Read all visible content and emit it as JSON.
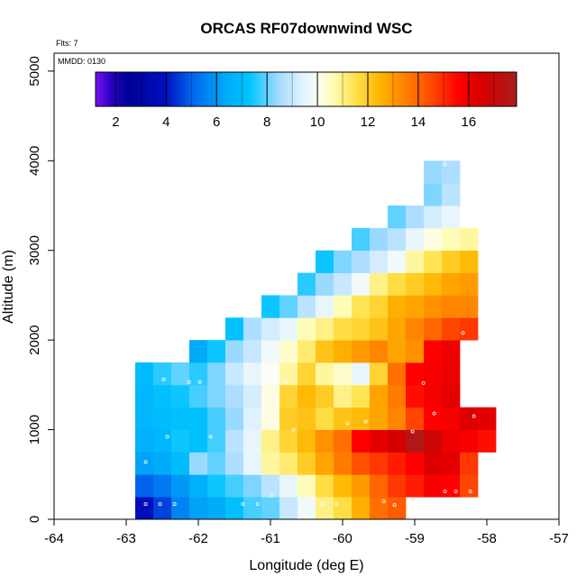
{
  "chart_data": {
    "type": "heatmap",
    "title": "ORCAS RF07downwind WSC",
    "xlabel": "Longitude (deg E)",
    "ylabel": "Altitude (m)",
    "note_flts": "Flts: 7",
    "note_mmdd": "MMDD: 0130",
    "xlim": [
      -64,
      -57
    ],
    "ylim": [
      0,
      5200
    ],
    "x_ticks": [
      -64,
      -63,
      -62,
      -61,
      -60,
      -59,
      -58,
      -57
    ],
    "y_ticks": [
      0,
      1000,
      2000,
      3000,
      4000,
      5000
    ],
    "colorbar": {
      "range": [
        1.2,
        17.9
      ],
      "ticks": [
        2,
        4,
        6,
        8,
        10,
        12,
        14,
        16
      ],
      "stops": [
        [
          1.2,
          "#7a10f0"
        ],
        [
          1.8,
          "#2a00c8"
        ],
        [
          2.5,
          "#000096"
        ],
        [
          4.0,
          "#0010c0"
        ],
        [
          5.0,
          "#0064ee"
        ],
        [
          6.3,
          "#00a8f8"
        ],
        [
          7.3,
          "#00c4ff"
        ],
        [
          8.5,
          "#a8dcff"
        ],
        [
          9.4,
          "#dff2ff"
        ],
        [
          10.0,
          "#fbfdf6"
        ],
        [
          10.6,
          "#fffcb8"
        ],
        [
          11.5,
          "#ffe24a"
        ],
        [
          12.5,
          "#ffb400"
        ],
        [
          13.5,
          "#ff8000"
        ],
        [
          14.5,
          "#ff4c00"
        ],
        [
          15.6,
          "#ff0000"
        ],
        [
          16.6,
          "#d40000"
        ],
        [
          17.9,
          "#a81e1e"
        ]
      ]
    },
    "cell_size": {
      "dlon": 0.25,
      "dalt": 250
    },
    "cells": [
      [
        -62.75,
        125,
        3.8
      ],
      [
        -62.5,
        125,
        4.6
      ],
      [
        -62.25,
        125,
        5.6
      ],
      [
        -62.0,
        125,
        6.2
      ],
      [
        -61.75,
        125,
        6.4
      ],
      [
        -61.5,
        125,
        7.2
      ],
      [
        -61.25,
        125,
        7.8
      ],
      [
        -61.0,
        125,
        8.0
      ],
      [
        -60.75,
        125,
        9.0
      ],
      [
        -60.5,
        125,
        9.8
      ],
      [
        -60.25,
        125,
        11.0
      ],
      [
        -60.0,
        125,
        11.6
      ],
      [
        -59.75,
        125,
        12.6
      ],
      [
        -59.5,
        125,
        13.8
      ],
      [
        -59.25,
        125,
        14.2
      ],
      [
        -62.75,
        375,
        5.0
      ],
      [
        -62.5,
        375,
        5.4
      ],
      [
        -62.25,
        375,
        6.0
      ],
      [
        -62.0,
        375,
        6.6
      ],
      [
        -61.75,
        375,
        7.4
      ],
      [
        -61.5,
        375,
        7.8
      ],
      [
        -61.25,
        375,
        8.2
      ],
      [
        -61.0,
        375,
        8.8
      ],
      [
        -60.75,
        375,
        9.6
      ],
      [
        -60.5,
        375,
        10.6
      ],
      [
        -60.25,
        375,
        11.6
      ],
      [
        -60.0,
        375,
        12.4
      ],
      [
        -59.75,
        375,
        13.0
      ],
      [
        -59.5,
        375,
        14.0
      ],
      [
        -59.25,
        375,
        14.8
      ],
      [
        -59.0,
        375,
        15.2
      ],
      [
        -58.75,
        375,
        15.8
      ],
      [
        -58.5,
        375,
        15.6
      ],
      [
        -58.25,
        375,
        14.6
      ],
      [
        -62.75,
        625,
        6.2
      ],
      [
        -62.5,
        625,
        6.4
      ],
      [
        -62.25,
        625,
        7.0
      ],
      [
        -62.0,
        625,
        8.4
      ],
      [
        -61.75,
        625,
        8.0
      ],
      [
        -61.5,
        625,
        8.6
      ],
      [
        -61.25,
        625,
        9.6
      ],
      [
        -61.0,
        625,
        10.8
      ],
      [
        -60.75,
        625,
        11.2
      ],
      [
        -60.5,
        625,
        12.0
      ],
      [
        -60.25,
        625,
        12.8
      ],
      [
        -60.0,
        625,
        13.6
      ],
      [
        -59.75,
        625,
        14.4
      ],
      [
        -59.5,
        625,
        14.8
      ],
      [
        -59.25,
        625,
        15.2
      ],
      [
        -59.0,
        625,
        15.6
      ],
      [
        -58.75,
        625,
        16.4
      ],
      [
        -58.5,
        625,
        16.2
      ],
      [
        -58.25,
        625,
        14.8
      ],
      [
        -62.75,
        875,
        6.6
      ],
      [
        -62.5,
        875,
        6.8
      ],
      [
        -62.25,
        875,
        7.4
      ],
      [
        -62.0,
        875,
        7.2
      ],
      [
        -61.75,
        875,
        7.8
      ],
      [
        -61.5,
        875,
        8.8
      ],
      [
        -61.25,
        875,
        9.6
      ],
      [
        -61.0,
        875,
        11.0
      ],
      [
        -60.75,
        875,
        11.8
      ],
      [
        -60.5,
        875,
        12.4
      ],
      [
        -60.25,
        875,
        13.2
      ],
      [
        -60.0,
        875,
        13.8
      ],
      [
        -59.75,
        875,
        15.6
      ],
      [
        -59.5,
        875,
        16.2
      ],
      [
        -59.25,
        875,
        16.6
      ],
      [
        -59.0,
        875,
        17.6
      ],
      [
        -58.75,
        875,
        16.8
      ],
      [
        -58.5,
        875,
        16.0
      ],
      [
        -58.25,
        875,
        15.8
      ],
      [
        -58.0,
        875,
        15.4
      ],
      [
        -62.75,
        1125,
        6.8
      ],
      [
        -62.5,
        1125,
        7.0
      ],
      [
        -62.25,
        1125,
        7.2
      ],
      [
        -62.0,
        1125,
        7.2
      ],
      [
        -61.75,
        1125,
        7.8
      ],
      [
        -61.5,
        1125,
        8.4
      ],
      [
        -61.25,
        1125,
        9.4
      ],
      [
        -61.0,
        1125,
        10.2
      ],
      [
        -60.75,
        1125,
        12.0
      ],
      [
        -60.5,
        1125,
        12.2
      ],
      [
        -60.25,
        1125,
        11.6
      ],
      [
        -60.0,
        1125,
        12.2
      ],
      [
        -59.75,
        1125,
        12.4
      ],
      [
        -59.5,
        1125,
        12.8
      ],
      [
        -59.25,
        1125,
        13.4
      ],
      [
        -59.0,
        1125,
        14.6
      ],
      [
        -58.75,
        1125,
        15.6
      ],
      [
        -58.5,
        1125,
        15.8
      ],
      [
        -58.25,
        1125,
        16.4
      ],
      [
        -58.0,
        1125,
        16.2
      ],
      [
        -62.75,
        1375,
        6.8
      ],
      [
        -62.5,
        1375,
        7.2
      ],
      [
        -62.25,
        1375,
        7.4
      ],
      [
        -62.0,
        1375,
        7.8
      ],
      [
        -61.75,
        1375,
        8.2
      ],
      [
        -61.5,
        1375,
        8.6
      ],
      [
        -61.25,
        1375,
        9.2
      ],
      [
        -61.0,
        1375,
        10.2
      ],
      [
        -60.75,
        1375,
        11.8
      ],
      [
        -60.5,
        1375,
        12.4
      ],
      [
        -60.25,
        1375,
        12.0
      ],
      [
        -60.0,
        1375,
        11.0
      ],
      [
        -59.75,
        1375,
        11.4
      ],
      [
        -59.5,
        1375,
        12.8
      ],
      [
        -59.25,
        1375,
        13.6
      ],
      [
        -59.0,
        1375,
        15.4
      ],
      [
        -58.75,
        1375,
        15.8
      ],
      [
        -58.5,
        1375,
        16.2
      ],
      [
        -62.75,
        1625,
        7.0
      ],
      [
        -62.5,
        1625,
        7.6
      ],
      [
        -62.25,
        1625,
        8.0
      ],
      [
        -62.0,
        1625,
        7.6
      ],
      [
        -61.75,
        1625,
        8.2
      ],
      [
        -61.5,
        1625,
        9.0
      ],
      [
        -61.25,
        1625,
        9.6
      ],
      [
        -61.0,
        1625,
        10.0
      ],
      [
        -60.75,
        1625,
        10.8
      ],
      [
        -60.5,
        1625,
        11.8
      ],
      [
        -60.25,
        1625,
        10.8
      ],
      [
        -60.0,
        1625,
        10.4
      ],
      [
        -59.75,
        1625,
        9.6
      ],
      [
        -59.5,
        1625,
        11.8
      ],
      [
        -59.25,
        1625,
        13.8
      ],
      [
        -59.0,
        1625,
        15.6
      ],
      [
        -58.75,
        1625,
        15.8
      ],
      [
        -58.5,
        1625,
        16.0
      ],
      [
        -62.0,
        1875,
        6.4
      ],
      [
        -61.75,
        1875,
        7.4
      ],
      [
        -61.5,
        1875,
        8.4
      ],
      [
        -61.25,
        1875,
        9.0
      ],
      [
        -61.0,
        1875,
        9.8
      ],
      [
        -60.75,
        1875,
        10.4
      ],
      [
        -60.5,
        1875,
        11.2
      ],
      [
        -60.25,
        1875,
        12.2
      ],
      [
        -60.0,
        1875,
        12.6
      ],
      [
        -59.75,
        1875,
        13.0
      ],
      [
        -59.5,
        1875,
        13.4
      ],
      [
        -59.25,
        1875,
        12.8
      ],
      [
        -59.0,
        1875,
        13.2
      ],
      [
        -58.75,
        1875,
        15.6
      ],
      [
        -58.5,
        1875,
        16.0
      ],
      [
        -61.5,
        2125,
        7.2
      ],
      [
        -61.25,
        2125,
        8.6
      ],
      [
        -61.0,
        2125,
        9.2
      ],
      [
        -60.75,
        2125,
        9.6
      ],
      [
        -60.5,
        2125,
        10.6
      ],
      [
        -60.25,
        2125,
        11.0
      ],
      [
        -60.0,
        2125,
        11.6
      ],
      [
        -59.75,
        2125,
        11.8
      ],
      [
        -59.5,
        2125,
        12.2
      ],
      [
        -59.25,
        2125,
        12.8
      ],
      [
        -59.0,
        2125,
        13.4
      ],
      [
        -58.75,
        2125,
        14.0
      ],
      [
        -58.5,
        2125,
        14.6
      ],
      [
        -58.25,
        2125,
        14.8
      ],
      [
        -61.0,
        2375,
        7.4
      ],
      [
        -60.75,
        2375,
        8.0
      ],
      [
        -60.5,
        2375,
        8.8
      ],
      [
        -60.25,
        2375,
        9.6
      ],
      [
        -60.0,
        2375,
        10.6
      ],
      [
        -59.75,
        2375,
        11.4
      ],
      [
        -59.5,
        2375,
        11.8
      ],
      [
        -59.25,
        2375,
        12.6
      ],
      [
        -59.0,
        2375,
        12.8
      ],
      [
        -58.75,
        2375,
        13.2
      ],
      [
        -58.5,
        2375,
        13.4
      ],
      [
        -58.25,
        2375,
        13.4
      ],
      [
        -60.5,
        2625,
        7.6
      ],
      [
        -60.25,
        2625,
        8.4
      ],
      [
        -60.0,
        2625,
        9.0
      ],
      [
        -59.75,
        2625,
        9.8
      ],
      [
        -59.5,
        2625,
        11.0
      ],
      [
        -59.25,
        2625,
        11.6
      ],
      [
        -59.0,
        2625,
        12.0
      ],
      [
        -58.75,
        2625,
        12.4
      ],
      [
        -58.5,
        2625,
        12.8
      ],
      [
        -58.25,
        2625,
        13.0
      ],
      [
        -60.25,
        2875,
        7.4
      ],
      [
        -60.0,
        2875,
        8.2
      ],
      [
        -59.75,
        2875,
        8.6
      ],
      [
        -59.5,
        2875,
        9.2
      ],
      [
        -59.25,
        2875,
        9.8
      ],
      [
        -59.0,
        2875,
        10.8
      ],
      [
        -58.75,
        2875,
        11.4
      ],
      [
        -58.5,
        2875,
        12.0
      ],
      [
        -58.25,
        2875,
        12.4
      ],
      [
        -59.75,
        3125,
        7.8
      ],
      [
        -59.5,
        3125,
        8.4
      ],
      [
        -59.25,
        3125,
        8.8
      ],
      [
        -59.0,
        3125,
        9.6
      ],
      [
        -58.75,
        3125,
        10.2
      ],
      [
        -58.5,
        3125,
        10.6
      ],
      [
        -58.25,
        3125,
        10.8
      ],
      [
        -59.25,
        3375,
        8.0
      ],
      [
        -59.0,
        3375,
        8.6
      ],
      [
        -58.75,
        3375,
        9.2
      ],
      [
        -58.5,
        3375,
        9.6
      ],
      [
        -58.75,
        3625,
        8.2
      ],
      [
        -58.5,
        3625,
        8.8
      ],
      [
        -58.75,
        3875,
        8.4
      ],
      [
        -58.5,
        3875,
        8.6
      ]
    ],
    "markers": [
      [
        -62.73,
        170
      ],
      [
        -62.53,
        170
      ],
      [
        -62.33,
        170
      ],
      [
        -62.73,
        640
      ],
      [
        -62.43,
        920
      ],
      [
        -62.13,
        1530
      ],
      [
        -61.98,
        1530
      ],
      [
        -62.48,
        1560
      ],
      [
        -61.83,
        920
      ],
      [
        -61.38,
        170
      ],
      [
        -61.18,
        170
      ],
      [
        -60.98,
        270
      ],
      [
        -60.68,
        1000
      ],
      [
        -60.78,
        1530
      ],
      [
        -60.28,
        170
      ],
      [
        -60.08,
        170
      ],
      [
        -59.93,
        1070
      ],
      [
        -59.68,
        1090
      ],
      [
        -59.43,
        200
      ],
      [
        -59.28,
        160
      ],
      [
        -59.08,
        160
      ],
      [
        -59.03,
        980
      ],
      [
        -58.88,
        1520
      ],
      [
        -58.73,
        1180
      ],
      [
        -58.58,
        310
      ],
      [
        -58.43,
        310
      ],
      [
        -58.23,
        310
      ],
      [
        -58.18,
        1150
      ],
      [
        -58.33,
        2080
      ],
      [
        -58.58,
        3960
      ]
    ]
  }
}
